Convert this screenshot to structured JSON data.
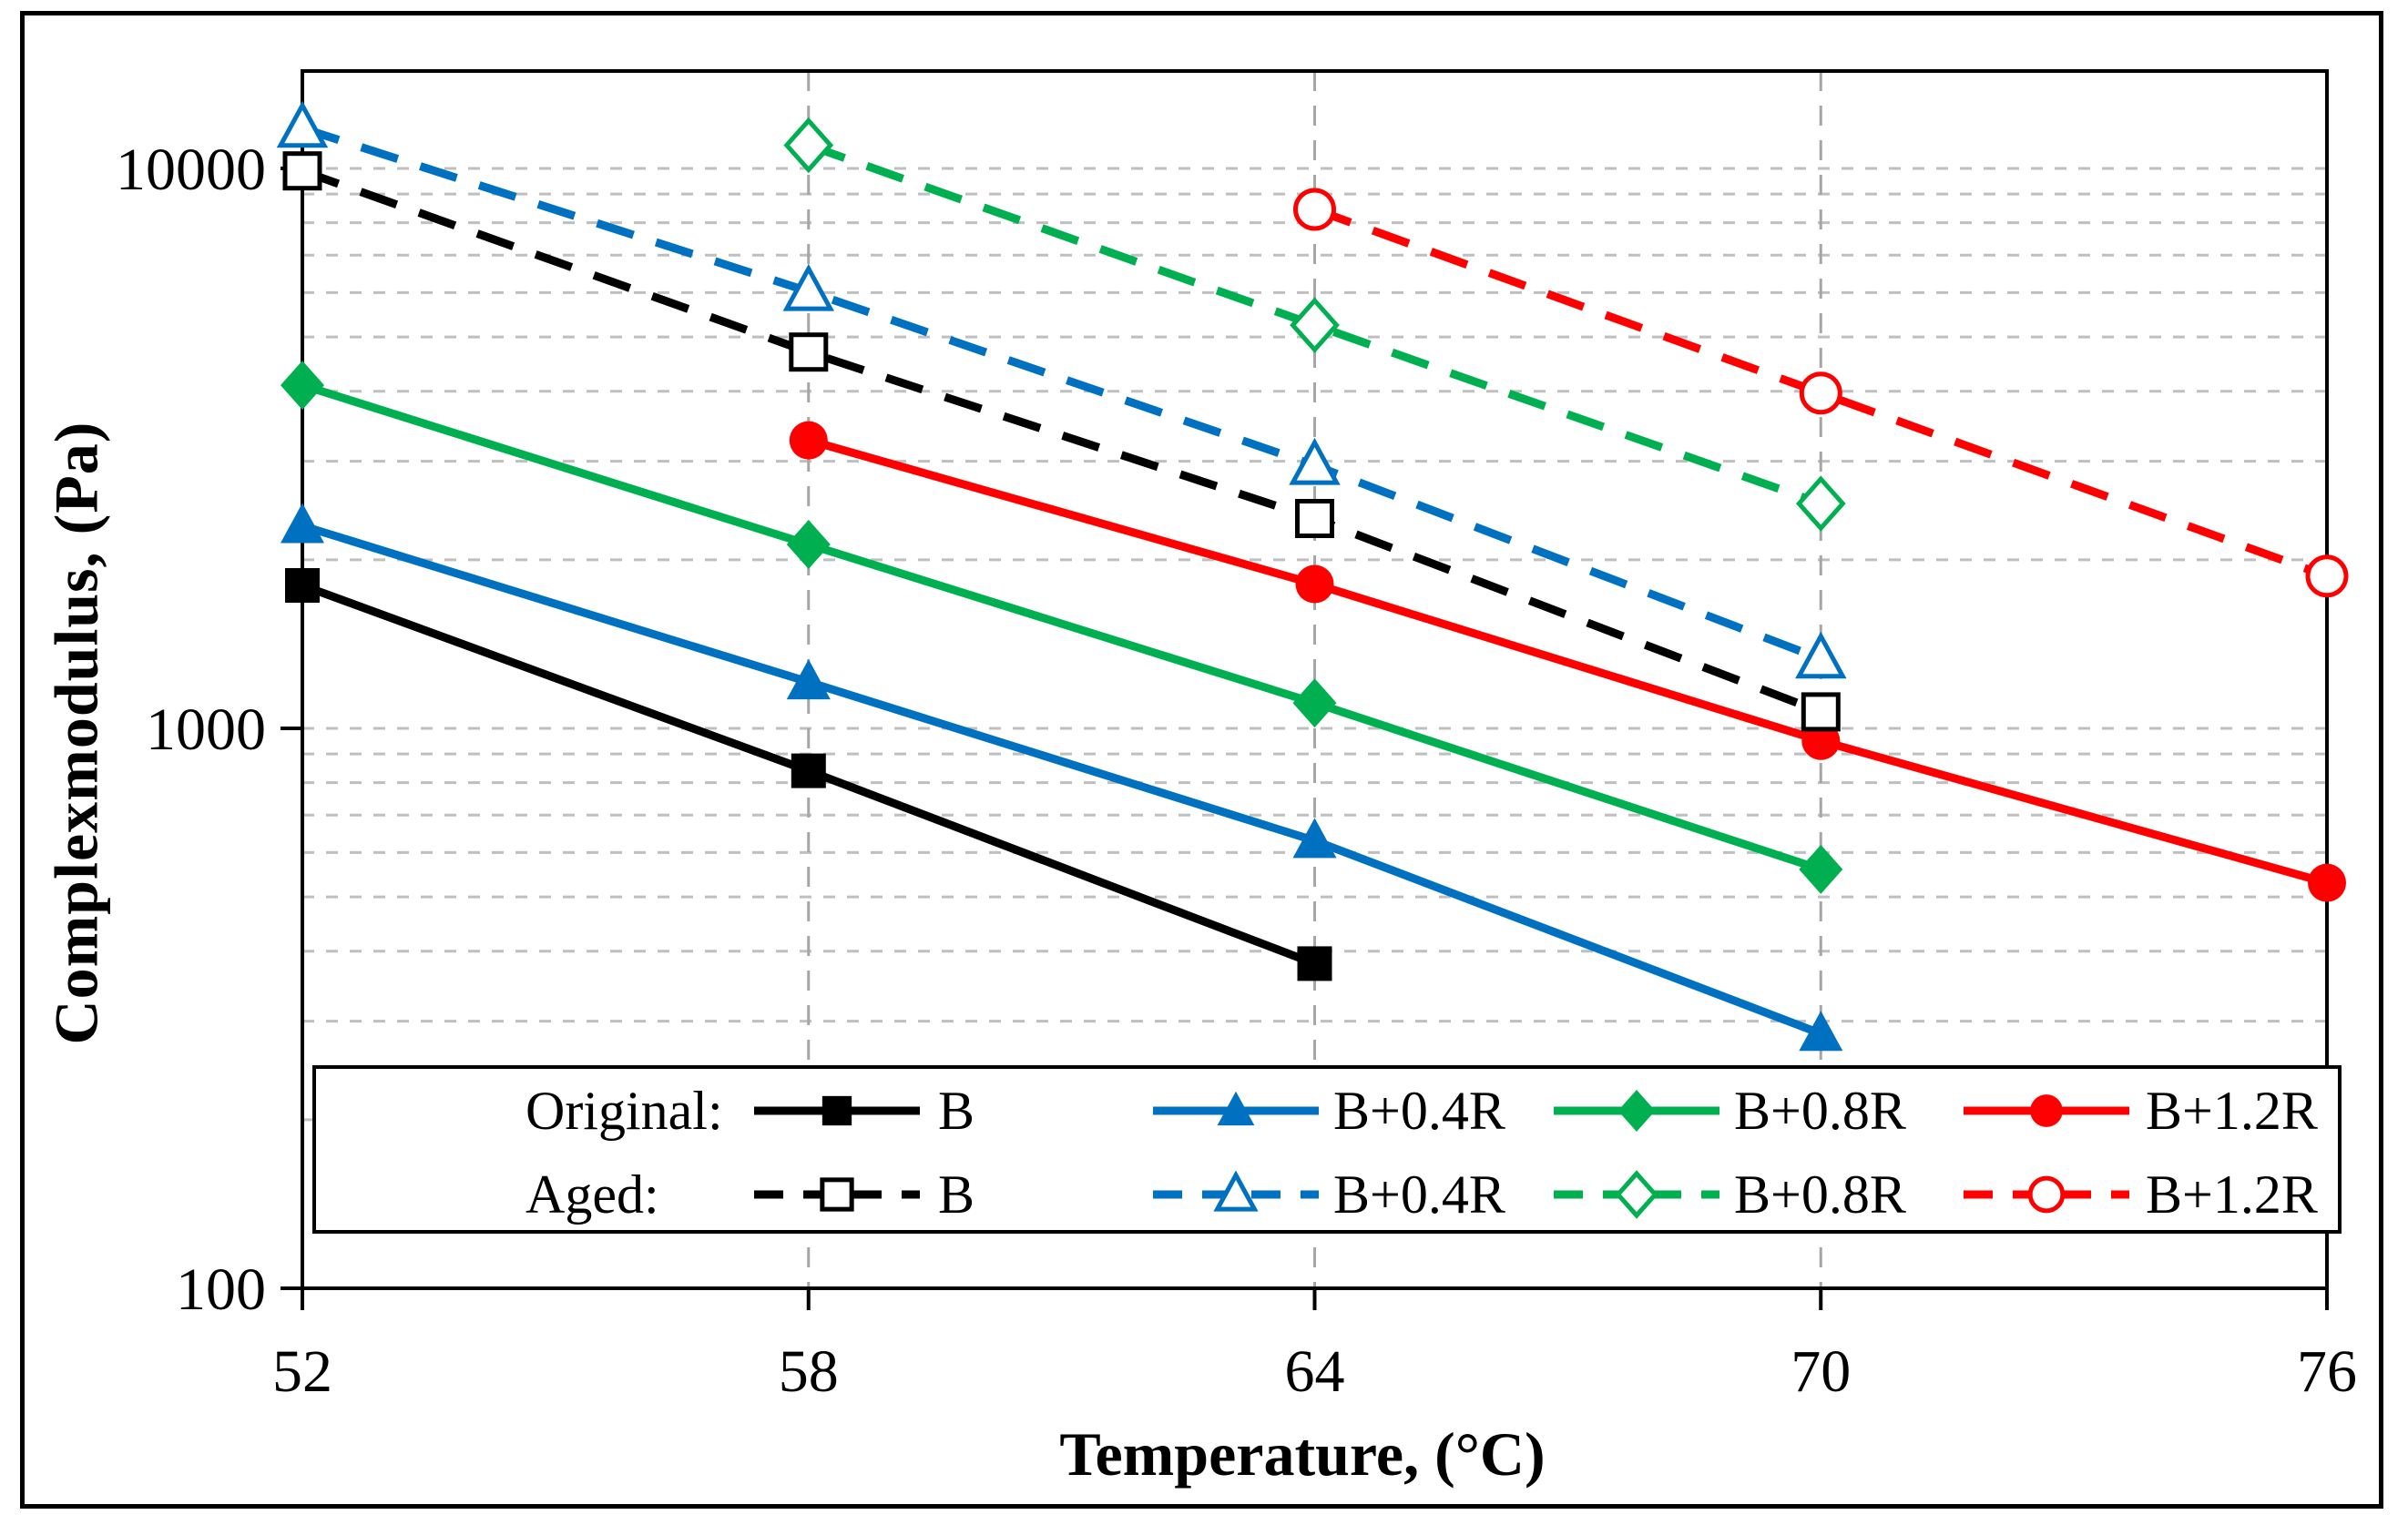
{
  "chart_data": {
    "type": "line",
    "title": "",
    "xlabel": "Temperature, (°C)",
    "ylabel": "Complexmodulus, (Pa)",
    "x_axis": {
      "min": 52,
      "max": 76,
      "ticks": [
        52,
        58,
        64,
        70,
        76
      ],
      "gridline_ticks": [
        58,
        64,
        70
      ]
    },
    "y_axis": {
      "scale": "log",
      "min": 100,
      "max": 14900,
      "ticks": [
        100,
        1000,
        10000
      ],
      "gridlines": [
        200,
        300,
        400,
        500,
        600,
        700,
        800,
        900,
        1000,
        2000,
        3000,
        4000,
        5000,
        6000,
        7000,
        8000,
        9000,
        10000
      ]
    },
    "grid_on": true,
    "legend_position": "bottom-inside",
    "series": [
      {
        "group": "Original",
        "label": "B",
        "color": "#000000",
        "dash": "solid",
        "marker": "square",
        "fill": "filled",
        "x": [
          52,
          58,
          64
        ],
        "y": [
          1800,
          840,
          380
        ]
      },
      {
        "group": "Original",
        "label": "B+0.4R",
        "color": "#0070C0",
        "dash": "solid",
        "marker": "triangle",
        "fill": "filled",
        "x": [
          52,
          58,
          64,
          70
        ],
        "y": [
          2300,
          1210,
          630,
          285
        ]
      },
      {
        "group": "Original",
        "label": "B+0.8R",
        "color": "#00B050",
        "dash": "solid",
        "marker": "diamond",
        "fill": "filled",
        "x": [
          52,
          58,
          64,
          70
        ],
        "y": [
          4100,
          2130,
          1110,
          560
        ]
      },
      {
        "group": "Original",
        "label": "B+1.2R",
        "color": "#FF0000",
        "dash": "solid",
        "marker": "circle",
        "fill": "filled",
        "x": [
          58,
          64,
          70,
          76
        ],
        "y": [
          3270,
          1810,
          950,
          530
        ]
      },
      {
        "group": "Aged",
        "label": "B",
        "color": "#000000",
        "dash": "dashed",
        "marker": "square",
        "fill": "open",
        "x": [
          52,
          58,
          64,
          70
        ],
        "y": [
          9900,
          4700,
          2370,
          1070
        ]
      },
      {
        "group": "Aged",
        "label": "B+0.4R",
        "color": "#0070C0",
        "dash": "dashed",
        "marker": "triangle",
        "fill": "open",
        "x": [
          52,
          58,
          64,
          70
        ],
        "y": [
          11800,
          6030,
          2950,
          1330
        ]
      },
      {
        "group": "Aged",
        "label": "B+0.8R",
        "color": "#00B050",
        "dash": "dashed",
        "marker": "diamond",
        "fill": "open",
        "x": [
          58,
          64,
          70
        ],
        "y": [
          11000,
          5250,
          2520
        ]
      },
      {
        "group": "Aged",
        "label": "B+1.2R",
        "color": "#FF0000",
        "dash": "dashed",
        "marker": "circle",
        "fill": "open",
        "x": [
          64,
          70,
          76
        ],
        "y": [
          8450,
          3970,
          1870
        ]
      }
    ],
    "legend": {
      "rows": [
        {
          "group_label": "Original:",
          "series": [
            0,
            1,
            2,
            3
          ]
        },
        {
          "group_label": "Aged:",
          "series": [
            4,
            5,
            6,
            7
          ]
        }
      ]
    },
    "colors": {
      "gridline": "#BFBFBF",
      "vertical_gridline": "#A6A6A6",
      "axis": "#000000"
    }
  }
}
